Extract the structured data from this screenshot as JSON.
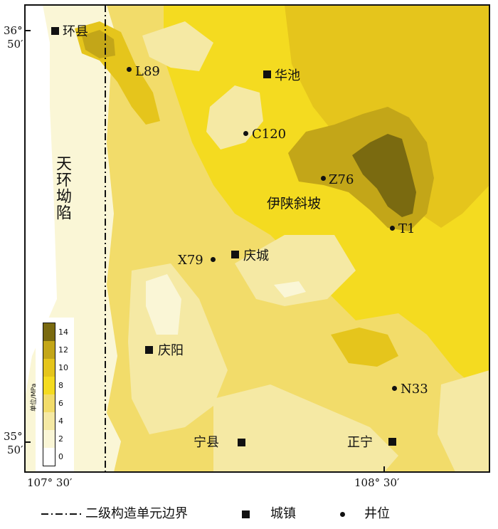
{
  "legend": {
    "unit": "单位/MPa",
    "ticks": [
      "0",
      "2",
      "4",
      "6",
      "8",
      "10",
      "12",
      "14"
    ],
    "colors": [
      "#ffffff",
      "#faf6d6",
      "#f5e9a4",
      "#f2dc6a",
      "#f4db20",
      "#e5c51c",
      "#c3a618",
      "#7a6a10"
    ]
  },
  "bottom_legend": {
    "boundary": "二级构造单元边界",
    "town": "城镇",
    "well": "井位"
  },
  "coords": {
    "lat_top_deg": "36°",
    "lat_top_min": "50′",
    "lat_bot_deg": "35°",
    "lat_bot_min": "50′",
    "lon_left": "107° 30′",
    "lon_right": "108° 30′"
  },
  "regions": {
    "west": "天环坳陷",
    "slope": "伊陕斜坡"
  },
  "towns": [
    {
      "id": "huanxian",
      "label": "环县"
    },
    {
      "id": "huachi",
      "label": "华池"
    },
    {
      "id": "qingcheng",
      "label": "庆城"
    },
    {
      "id": "qingyang",
      "label": "庆阳"
    },
    {
      "id": "ningxian",
      "label": "宁县"
    },
    {
      "id": "zhengning",
      "label": "正宁"
    }
  ],
  "wells": [
    {
      "id": "L89",
      "label": "L89"
    },
    {
      "id": "C120",
      "label": "C120"
    },
    {
      "id": "Z76",
      "label": "Z76"
    },
    {
      "id": "T1",
      "label": "T1"
    },
    {
      "id": "X79",
      "label": "X79"
    },
    {
      "id": "N33",
      "label": "N33"
    }
  ]
}
